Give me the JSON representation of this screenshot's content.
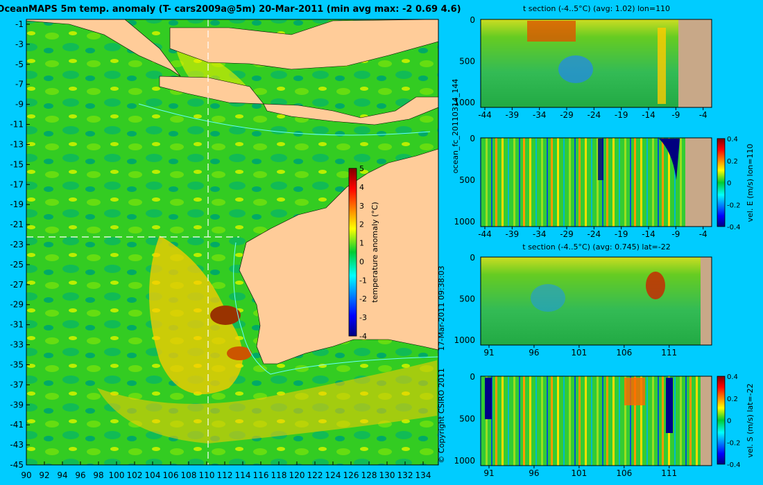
{
  "main_map": {
    "title": "OceanMAPS 5m temp. anomaly (T- cars2009a@5m) 20-Mar-2011 (min avg max: -2 0.69 4.6)",
    "y_ticks": [
      "-1",
      "-3",
      "-5",
      "-7",
      "-9",
      "-11",
      "-13",
      "-15",
      "-17",
      "-19",
      "-21",
      "-23",
      "-25",
      "-27",
      "-29",
      "-31",
      "-33",
      "-35",
      "-37",
      "-39",
      "-41",
      "-43",
      "-45"
    ],
    "x_ticks": [
      "90",
      "92",
      "94",
      "96",
      "98",
      "100",
      "102",
      "104",
      "106",
      "108",
      "110",
      "112",
      "114",
      "116",
      "118",
      "120",
      "122",
      "124",
      "126",
      "128",
      "130",
      "132",
      "134"
    ],
    "colorbar": {
      "label": "temperature anomaly (°C)",
      "ticks": [
        "5",
        "4",
        "3",
        "2",
        "1",
        "0",
        "-1",
        "-2",
        "-3",
        "-4"
      ],
      "range": [
        -4,
        5
      ]
    },
    "crosshair": {
      "lon": 110,
      "lat": -22
    },
    "colors": {
      "land": "#ffcc99",
      "coast_contour": "#66ffff",
      "background": "#00ccff"
    }
  },
  "side_text": {
    "run_id": "ocean_fc_20110314_144",
    "timestamp": "17-Mar-2011 09:38:03",
    "copyright": "© Copyright CSIRO 2011"
  },
  "sections": [
    {
      "title": "t section (-4..5°C) (avg: 1.02) lon=110",
      "y_ticks": [
        "0",
        "500",
        "1000"
      ],
      "x_ticks": [
        "-44",
        "-39",
        "-34",
        "-29",
        "-24",
        "-19",
        "-14",
        "-9",
        "-4"
      ],
      "colorbar": null
    },
    {
      "title": "",
      "y_ticks": [
        "0",
        "500",
        "1000"
      ],
      "x_ticks": [
        "-44",
        "-39",
        "-34",
        "-29",
        "-24",
        "-19",
        "-14",
        "-9",
        "-4"
      ],
      "colorbar": {
        "label": "vel. E (m/s) lon=110",
        "ticks": [
          "0.4",
          "0.2",
          "0",
          "-0.2",
          "-0.4"
        ]
      }
    },
    {
      "title": "t section (-4..5°C) (avg: 0.745) lat=-22",
      "y_ticks": [
        "0",
        "500",
        "1000"
      ],
      "x_ticks": [
        "91",
        "96",
        "101",
        "106",
        "111"
      ],
      "colorbar": null
    },
    {
      "title": "",
      "y_ticks": [
        "0",
        "500",
        "1000"
      ],
      "x_ticks": [
        "91",
        "96",
        "101",
        "106",
        "111"
      ],
      "colorbar": {
        "label": "vel. S (m/s) lat=-22",
        "ticks": [
          "0.4",
          "0.2",
          "0",
          "-0.2",
          "-0.4"
        ]
      }
    }
  ]
}
